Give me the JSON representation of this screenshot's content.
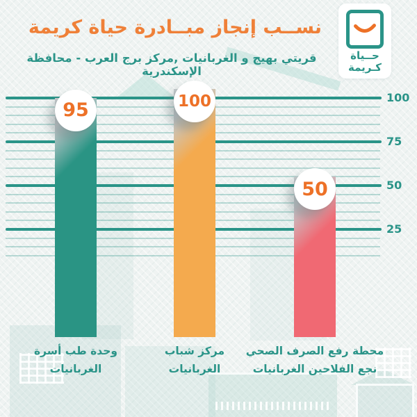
{
  "page": {
    "background_color": "#eff3f2"
  },
  "header": {
    "title": "نســب إنجاز مبــادرة حياة كريمة",
    "title_color": "#ef8038",
    "subtitle": "قريتي بهيج و الغربانيات ,مركز برج العرب - محافظة الإسكندرية",
    "subtitle_color": "#2a9488"
  },
  "logo": {
    "text_line1": "حــياة",
    "text_line2": "كـريمة",
    "frame_color": "#2a9488",
    "smile_color": "#ed7127"
  },
  "chart_data": {
    "type": "bar",
    "title": "نســب إنجاز مبــادرة حياة كريمة",
    "subtitle": "قريتي بهيج و الغربانيات ,مركز برج العرب - محافظة الإسكندرية",
    "categories": [
      "وحدة طب أسرة الغربانيات",
      "مركز شباب الغربانيات",
      "محطة رفع الصرف الصحي نجع الفلاحين الغربانيات"
    ],
    "values": [
      95,
      100,
      50
    ],
    "bars": [
      {
        "value": 95,
        "value_text": "95",
        "color": "#2a9484",
        "label_line1": "وحدة طب أسرة",
        "label_line2": "الغربانيات"
      },
      {
        "value": 100,
        "value_text": "100",
        "color": "#f4aa4e",
        "label_line1": "مركز شباب",
        "label_line2": "الغربانيات"
      },
      {
        "value": 50,
        "value_text": "50",
        "color": "#f06973",
        "label_line1": "محطة رفع الصرف الصحي",
        "label_line2": "نجع الفلاحين الغربانيات"
      }
    ],
    "yticks": [
      100,
      75,
      50,
      25
    ],
    "ylim": [
      0,
      100
    ],
    "grid": true,
    "legend": false,
    "axis_label_color": "#2a9488",
    "gridline_major_color": "#2a9488",
    "gridline_minor_color": "rgba(42,148,136,0.30)",
    "value_bubble_bg": "#ffffff",
    "value_bubble_text_color": "#ed7127",
    "bar_top_sheen_color": "#c9ced0"
  }
}
